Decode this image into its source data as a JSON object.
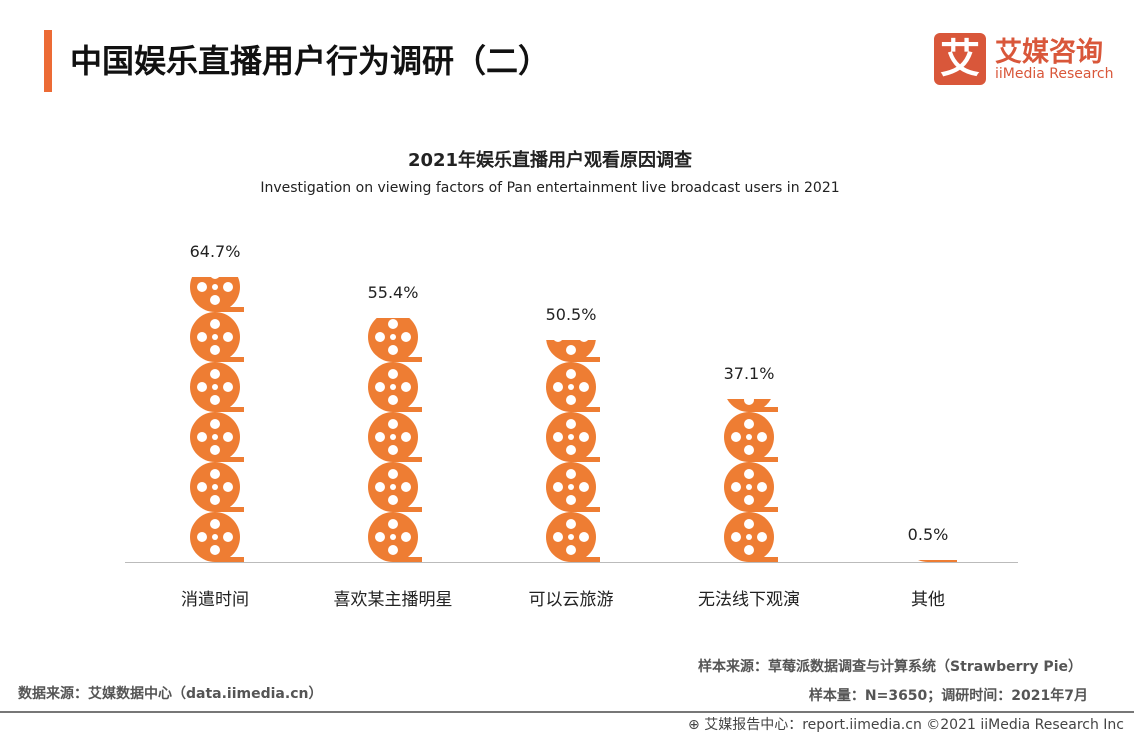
{
  "header": {
    "title": "中国娱乐直播用户行为调研（二）",
    "logo_mark": "艾",
    "logo_cn": "艾媒咨询",
    "logo_en": "iiMedia Research"
  },
  "chart_data": {
    "type": "bar",
    "style": "pictogram-film-reel",
    "title": "2021年娱乐直播用户观看原因调查",
    "subtitle": "Investigation on viewing factors of Pan entertainment live broadcast users in 2021",
    "categories": [
      "消遣时间",
      "喜欢某主播明星",
      "可以云旅游",
      "无法线下观演",
      "其他"
    ],
    "values": [
      64.7,
      55.4,
      50.5,
      37.1,
      0.5
    ],
    "labels": [
      "64.7%",
      "55.4%",
      "50.5%",
      "37.1%",
      "0.5%"
    ],
    "color": "#ee7d33",
    "grid": false
  },
  "footer": {
    "sample_source": "样本来源：草莓派数据调查与计算系统（Strawberry Pie）",
    "sample_size": "样本量：N=3650；调研时间：2021年7月",
    "data_source": "数据来源：艾媒数据中心（data.iimedia.cn）",
    "copyright": "艾媒报告中心：report.iimedia.cn   ©2021  iiMedia Research  Inc"
  }
}
